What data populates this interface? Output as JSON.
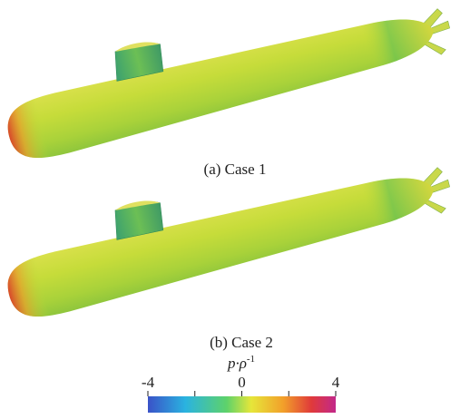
{
  "panels": [
    {
      "caption": "(a) Case 1"
    },
    {
      "caption": "(b) Case 2"
    }
  ],
  "colorbar": {
    "label": "p·ρ",
    "label_exponent": "-1",
    "lim": [
      -4,
      4
    ],
    "ticks": [
      -4,
      0,
      4
    ],
    "minor_ticks": [
      -2,
      2
    ]
  }
}
